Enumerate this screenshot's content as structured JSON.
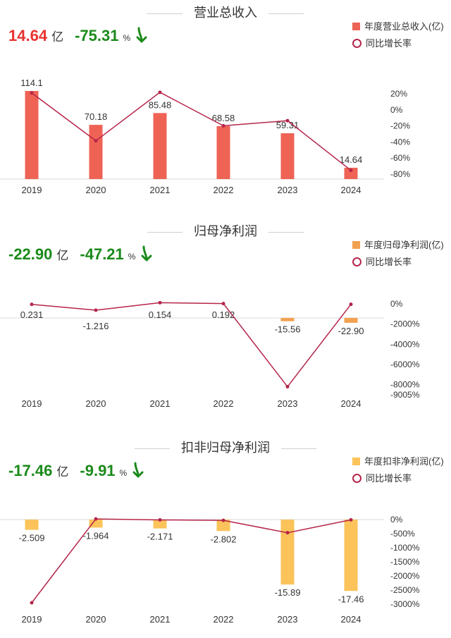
{
  "panels": [
    {
      "title": "营业总收入",
      "kpi": {
        "value": "14.64",
        "unit": "亿",
        "change": "-75.31",
        "pct_unit": "%",
        "value_color": "#e8322f",
        "change_color": "#1a8a1a"
      },
      "legend": {
        "bar_label": "年度营业总收入(亿)",
        "line_label": "同比增长率"
      },
      "colors": {
        "bar": "#ef6355",
        "line": "#b5254a"
      }
    },
    {
      "title": "归母净利润",
      "kpi": {
        "value": "-22.90",
        "unit": "亿",
        "change": "-47.21",
        "pct_unit": "%",
        "value_color": "#1a8a1a",
        "change_color": "#1a8a1a"
      },
      "legend": {
        "bar_label": "年度归母净利润(亿)",
        "line_label": "同比增长率"
      },
      "colors": {
        "bar": "#f2a150",
        "line": "#b5254a"
      }
    },
    {
      "title": "扣非归母净利润",
      "kpi": {
        "value": "-17.46",
        "unit": "亿",
        "change": "-9.91",
        "pct_unit": "%",
        "value_color": "#1a8a1a",
        "change_color": "#1a8a1a"
      },
      "legend": {
        "bar_label": "年度扣非净利润(亿)",
        "line_label": "同比增长率"
      },
      "colors": {
        "bar": "#fbc35a",
        "line": "#b5254a"
      }
    }
  ],
  "chart_data": [
    {
      "type": "bar",
      "title": "营业总收入",
      "categories": [
        "2019",
        "2020",
        "2021",
        "2022",
        "2023",
        "2024"
      ],
      "series": [
        {
          "name": "年度营业总收入(亿)",
          "values": [
            114.1,
            70.18,
            85.48,
            68.58,
            59.31,
            14.64
          ],
          "labels": [
            "114.1",
            "70.18",
            "85.48",
            "68.58",
            "59.31",
            "14.64"
          ]
        },
        {
          "name": "同比增长率",
          "type": "line",
          "axis": "right",
          "values": [
            21,
            -38.5,
            21.8,
            -19.8,
            -13.5,
            -75.31
          ]
        }
      ],
      "y_left_range": [
        0,
        114.1
      ],
      "y_right_ticks": [
        "20%",
        "0%",
        "-20%",
        "-40%",
        "-60%",
        "-80%"
      ],
      "y_right_tick_values": [
        20,
        0,
        -20,
        -40,
        -60,
        -80
      ],
      "y_right_range": [
        -80,
        20
      ]
    },
    {
      "type": "bar",
      "title": "归母净利润",
      "categories": [
        "2019",
        "2020",
        "2021",
        "2022",
        "2023",
        "2024"
      ],
      "series": [
        {
          "name": "年度归母净利润(亿)",
          "values": [
            0.231,
            -1.216,
            0.154,
            0.192,
            -15.56,
            -22.9
          ],
          "labels": [
            "0.231",
            "-1.216",
            "0.154",
            "0.192",
            "-15.56",
            "-22.90"
          ]
        },
        {
          "name": "同比增长率",
          "type": "line",
          "axis": "right",
          "values": [
            -50,
            -626,
            112,
            25,
            -8204,
            -47.21
          ]
        }
      ],
      "y_right_ticks": [
        "0%",
        "-2000%",
        "-4000%",
        "-6000%",
        "-8000%",
        "-9005%"
      ],
      "y_right_tick_values": [
        0,
        -2000,
        -4000,
        -6000,
        -8000,
        -9005
      ],
      "y_right_range": [
        -9005,
        0
      ]
    },
    {
      "type": "bar",
      "title": "扣非归母净利润",
      "categories": [
        "2019",
        "2020",
        "2021",
        "2022",
        "2023",
        "2024"
      ],
      "series": [
        {
          "name": "年度扣非净利润(亿)",
          "values": [
            -2.509,
            -1.964,
            -2.171,
            -2.802,
            -15.89,
            -17.46
          ],
          "labels": [
            "-2.509",
            "-1.964",
            "-2.171",
            "-2.802",
            "-15.89",
            "-17.46"
          ]
        },
        {
          "name": "同比增长率",
          "type": "line",
          "axis": "right",
          "values": [
            -2950,
            22,
            -11,
            -29,
            -467,
            -9.91
          ]
        }
      ],
      "y_right_ticks": [
        "0%",
        "-500%",
        "-1000%",
        "-1500%",
        "-2000%",
        "-2500%",
        "-3000%"
      ],
      "y_right_tick_values": [
        0,
        -500,
        -1000,
        -1500,
        -2000,
        -2500,
        -3000
      ],
      "y_right_range": [
        -3000,
        0
      ]
    }
  ]
}
